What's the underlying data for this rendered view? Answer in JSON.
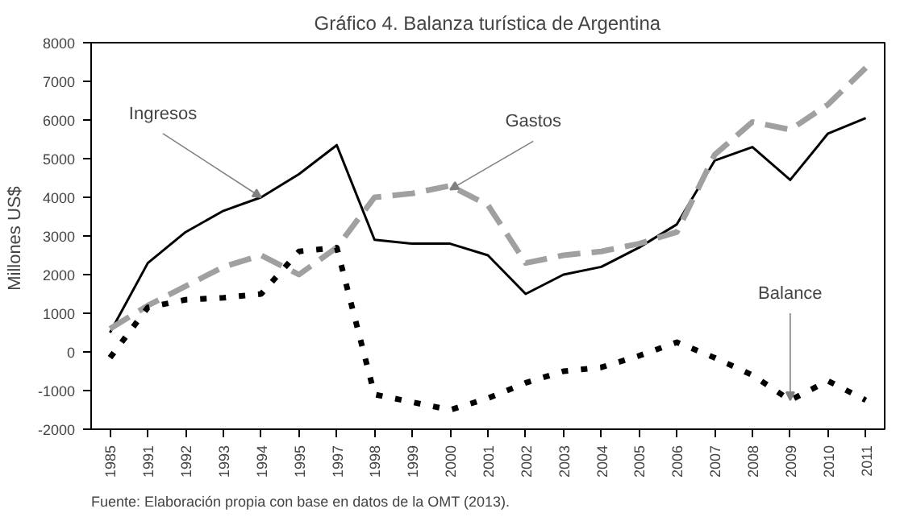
{
  "chart_data": {
    "type": "line",
    "title": "Gráfico 4. Balanza turística de Argentina",
    "ylabel": "Millones  US$",
    "categories": [
      "1985",
      "1991",
      "1992",
      "1993",
      "1994",
      "1995",
      "1997",
      "1998",
      "1999",
      "2000",
      "2001",
      "2002",
      "2003",
      "2004",
      "2005",
      "2006",
      "2007",
      "2008",
      "2009",
      "2010",
      "2011"
    ],
    "series": [
      {
        "color": "#000000",
        "line_style": "solid",
        "values": [
          500,
          2300,
          3100,
          3650,
          4000,
          4600,
          5350,
          2900,
          2800,
          2800,
          2500,
          1500,
          2000,
          2200,
          2700,
          3300,
          4950,
          5300,
          4450,
          5650,
          6050
        ]
      },
      {
        "color": "#a0a0a0",
        "line_style": "dashed",
        "values": [
          600,
          1200,
          1700,
          2200,
          2500,
          2000,
          2700,
          4000,
          4100,
          4300,
          3800,
          2300,
          2500,
          2600,
          2800,
          3100,
          5100,
          5950,
          5750,
          6400,
          7350
        ]
      },
      {
        "color": "#000000",
        "line_style": "dotted",
        "values": [
          -150,
          1150,
          1350,
          1400,
          1500,
          2600,
          2700,
          -1100,
          -1300,
          -1500,
          -1200,
          -800,
          -500,
          -400,
          -100,
          250,
          -150,
          -600,
          -1250,
          -750,
          -1250
        ]
      }
    ],
    "ylim": [
      -2000,
      8000
    ],
    "yticks": [
      -2000,
      -1000,
      0,
      1000,
      2000,
      3000,
      4000,
      5000,
      6000,
      7000,
      8000
    ],
    "grid": false,
    "annotations": [
      {
        "text": "Ingresos",
        "x": "1994",
        "y": 4000
      },
      {
        "text": "Gastos",
        "x": "2000",
        "y": 4200
      },
      {
        "text": "Balance",
        "x": "2009",
        "y": -1250
      },
      "Fuente: Elaboración propia con base en datos de la OMT (2013)."
    ]
  }
}
